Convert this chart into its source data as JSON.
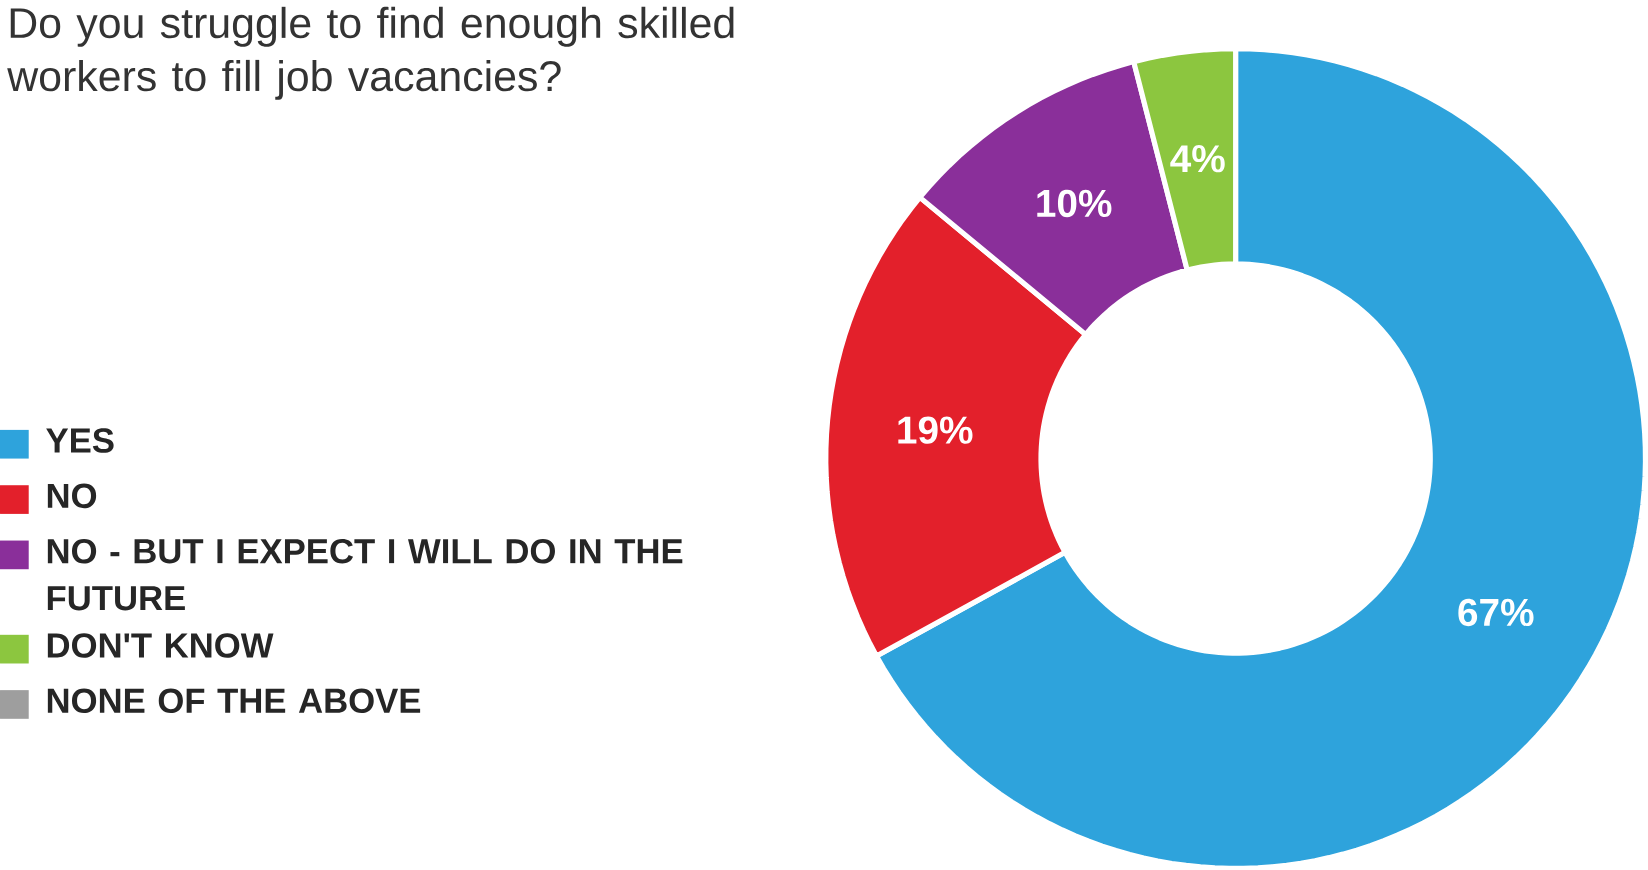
{
  "chart_data": {
    "type": "donut",
    "title": "Do you struggle to find enough skilled workers to fill job vacancies?",
    "categories": [
      "YES",
      "NO",
      "NO - BUT I EXPECT I WILL DO IN THE FUTURE",
      "DON'T KNOW",
      "NONE OF THE ABOVE"
    ],
    "values": [
      67,
      19,
      10,
      4,
      0
    ],
    "colors": [
      "#2ea3dc",
      "#e3202b",
      "#8a2f9a",
      "#8cc63f",
      "#9e9e9e"
    ],
    "value_labels": [
      "67%",
      "19%",
      "10%",
      "4%",
      null
    ],
    "legend": "left"
  }
}
